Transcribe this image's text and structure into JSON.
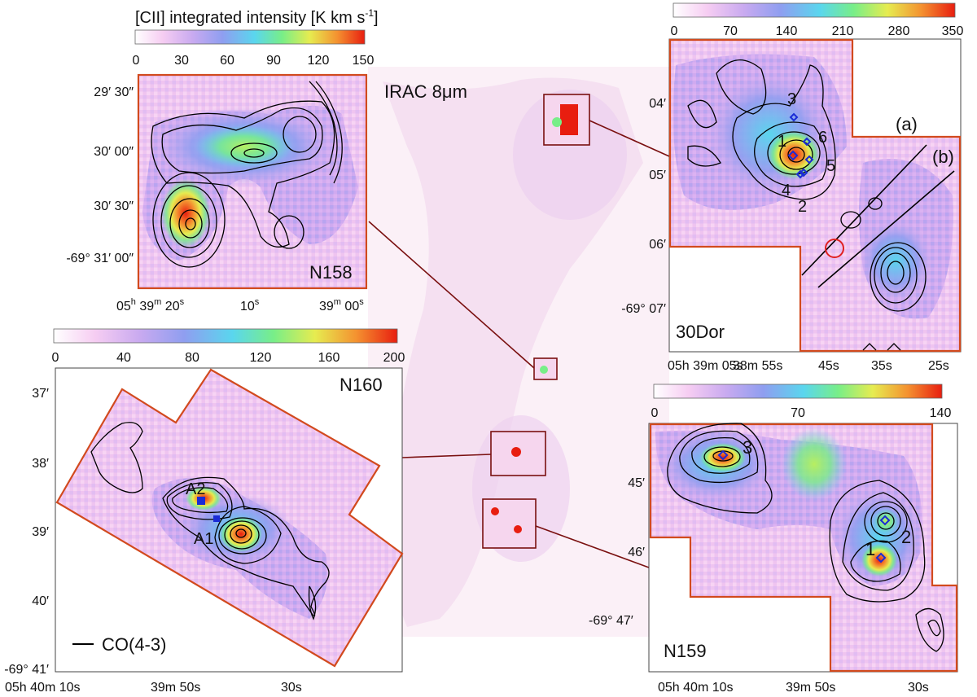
{
  "colors": {
    "frame": "#d24a1e",
    "connector": "#7a1010",
    "contour": "#000000",
    "marker": "#1a2bd6",
    "circle": "#e02020",
    "colormap": [
      "#ffffff",
      "#f4c6f0",
      "#c8a8f0",
      "#8e9cf0",
      "#58d8f0",
      "#78ee88",
      "#e8ec50",
      "#f49030",
      "#e81e10"
    ]
  },
  "center": {
    "label": "IRAC 8μm",
    "dec_tick": "-69° 47′"
  },
  "n158": {
    "name": "N158",
    "colorbar_title": "[CII] integrated intensity [K km s",
    "colorbar_unit_sup": "-1",
    "colorbar_unit_end": "]",
    "colorbar_ticks": [
      "0",
      "30",
      "60",
      "90",
      "120",
      "150"
    ],
    "y_ticks": [
      "29′ 30″",
      "30′ 00″",
      "30′ 30″",
      "-69° 31′ 00″"
    ],
    "x_ticks": [
      {
        "main": "05",
        "sup1": "h",
        "mid": " 39",
        "sup2": "m",
        "end": " 20",
        "sup3": "s"
      },
      {
        "main": "10",
        "sup1": "",
        "mid": "",
        "sup2": "",
        "end": "",
        "sup3": "s"
      },
      {
        "main": "39",
        "sup1": "m",
        "mid": " 00",
        "sup2": "s",
        "end": "",
        "sup3": ""
      }
    ]
  },
  "dor30": {
    "name": "30Dor",
    "colorbar_ticks": [
      "0",
      "70",
      "140",
      "210",
      "280",
      "350"
    ],
    "y_ticks": [
      "04′",
      "05′",
      "06′",
      "-69° 07′"
    ],
    "x_ticks": [
      "05h 39m 05s",
      "38m 55s",
      "45s",
      "35s",
      "25s"
    ],
    "cut_labels": [
      "(a)",
      "(b)"
    ],
    "source_labels": [
      "1",
      "2",
      "3",
      "4",
      "5",
      "6"
    ]
  },
  "n160": {
    "name": "N160",
    "colorbar_ticks": [
      "0",
      "40",
      "80",
      "120",
      "160",
      "200"
    ],
    "y_ticks": [
      "37′",
      "38′",
      "39′",
      "40′",
      "-69° 41′"
    ],
    "x_ticks": [
      "05h 40m 10s",
      "39m 50s",
      "30s"
    ],
    "source_labels": [
      "A2",
      "A1"
    ],
    "legend": "CO(4-3)"
  },
  "n159": {
    "name": "N159",
    "colorbar_ticks": [
      "0",
      "70",
      "140"
    ],
    "y_ticks": [
      "45′",
      "46′"
    ],
    "x_ticks": [
      "05h 40m 10s",
      "39m 50s",
      "30s"
    ],
    "source_labels": [
      "3",
      "2",
      "1"
    ]
  }
}
